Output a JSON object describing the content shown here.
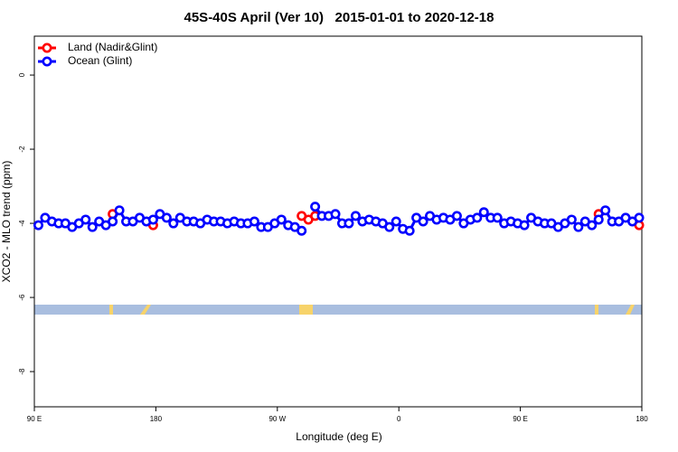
{
  "chart_data": {
    "type": "line",
    "title": "45S-40S April (Ver 10)   2015-01-01 to 2020-12-18",
    "x_label": "Longitude (deg E)",
    "y_label": "XCO2 - MLO trend (ppm)",
    "xlim": [
      90,
      540
    ],
    "xticks": [
      {
        "value": 90,
        "label": "90 E"
      },
      180,
      {
        "value": 270,
        "label": "90 W"
      },
      {
        "value": 360,
        "label": "0"
      },
      {
        "value": 450,
        "label": "90 E"
      },
      180
    ],
    "ylim": [
      -8.95,
      1.05
    ],
    "yticks": [
      0,
      -2,
      -4,
      -6,
      -8
    ],
    "legend": "top-left",
    "x": [
      93,
      98,
      103,
      108,
      113,
      118,
      123,
      128,
      133,
      138,
      143,
      148,
      153,
      158,
      163,
      168,
      173,
      178,
      183,
      188,
      193,
      198,
      203,
      208,
      213,
      218,
      223,
      228,
      233,
      238,
      243,
      248,
      253,
      258,
      263,
      268,
      273,
      278,
      283,
      288,
      293,
      298,
      303,
      308,
      313,
      318,
      323,
      328,
      333,
      338,
      343,
      348,
      353,
      358,
      363,
      368,
      373,
      378,
      383,
      388,
      393,
      398,
      403,
      408,
      413,
      418,
      423,
      428,
      433,
      438,
      443,
      448,
      453,
      458,
      463,
      468,
      473,
      478,
      483,
      488,
      493,
      498,
      503,
      508,
      513,
      518,
      523,
      528,
      533,
      538
    ],
    "series": [
      {
        "name": "Land (Nadir&Glint)",
        "color": "#ff0000",
        "values": [
          null,
          null,
          null,
          null,
          null,
          null,
          null,
          null,
          null,
          null,
          null,
          -3.75,
          null,
          null,
          null,
          null,
          null,
          -4.05,
          null,
          null,
          null,
          null,
          null,
          null,
          null,
          null,
          null,
          null,
          null,
          null,
          null,
          null,
          null,
          null,
          null,
          null,
          null,
          null,
          null,
          -3.8,
          -3.9,
          -3.8,
          null,
          null,
          null,
          null,
          null,
          null,
          null,
          null,
          null,
          null,
          null,
          null,
          null,
          null,
          null,
          null,
          null,
          null,
          null,
          null,
          null,
          null,
          null,
          null,
          null,
          null,
          null,
          null,
          null,
          null,
          null,
          null,
          null,
          null,
          null,
          null,
          null,
          null,
          null,
          null,
          null,
          -3.75,
          null,
          null,
          null,
          null,
          null,
          -4.05
        ]
      },
      {
        "name": "Ocean (Glint)",
        "color": "#0000ff",
        "values": [
          -4.05,
          -3.85,
          -3.95,
          -4.0,
          -4.0,
          -4.1,
          -4.0,
          -3.9,
          -4.1,
          -3.95,
          -4.05,
          -3.95,
          -3.65,
          -3.95,
          -3.95,
          -3.85,
          -3.95,
          -3.9,
          -3.75,
          -3.85,
          -4.0,
          -3.85,
          -3.95,
          -3.95,
          -4.0,
          -3.9,
          -3.95,
          -3.95,
          -4.0,
          -3.95,
          -4.0,
          -4.0,
          -3.95,
          -4.1,
          -4.1,
          -4.0,
          -3.9,
          -4.05,
          -4.1,
          -4.2,
          null,
          -3.55,
          -3.8,
          -3.8,
          -3.75,
          -4.0,
          -4.0,
          -3.8,
          -3.95,
          -3.9,
          -3.95,
          -4.0,
          -4.1,
          -3.95,
          -4.15,
          -4.2,
          -3.85,
          -3.95,
          -3.8,
          -3.9,
          -3.85,
          -3.9,
          -3.8,
          -4.0,
          -3.9,
          -3.85,
          -3.7,
          -3.85,
          -3.85,
          -4.0,
          -3.95,
          -4.0,
          -4.05,
          -3.85,
          -3.95,
          -4.0,
          -4.0,
          -4.1,
          -4.0,
          -3.9,
          -4.1,
          -3.95,
          -4.05,
          -3.9,
          -3.65,
          -3.95,
          -3.95,
          -3.85,
          -3.95,
          -3.85
        ]
      }
    ]
  }
}
